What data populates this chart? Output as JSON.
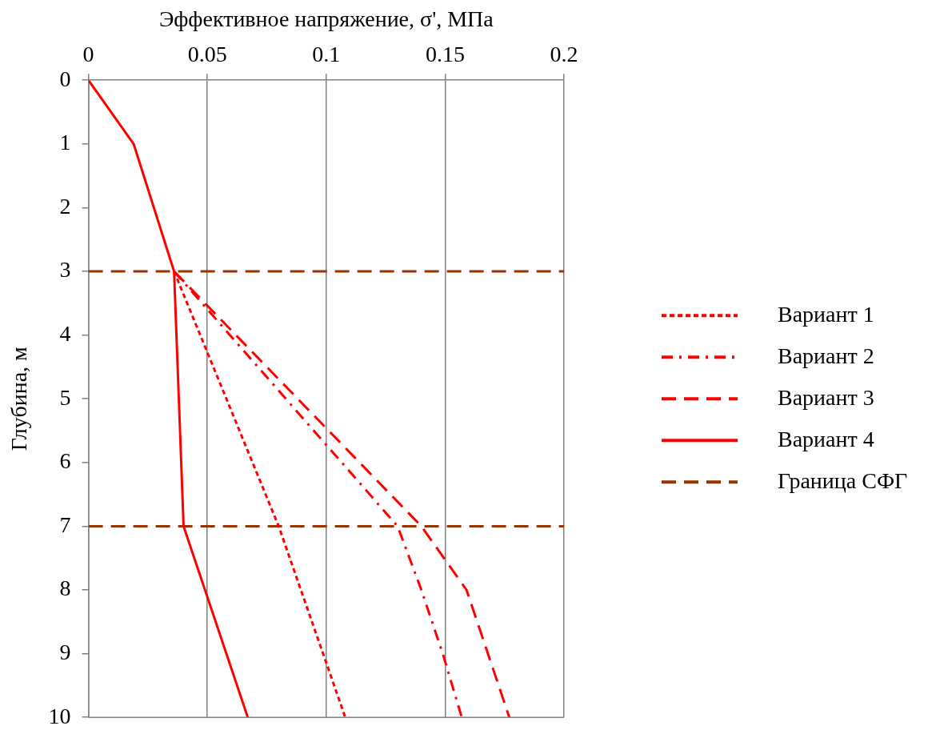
{
  "chart_data": {
    "type": "line",
    "xlabel": "Эффективное напряжение, σ', МПа",
    "ylabel": "Глубина, м",
    "xlim": [
      0,
      0.2
    ],
    "xticks": [
      0,
      0.05,
      0.1,
      0.15,
      0.2
    ],
    "ylim": [
      10,
      0
    ],
    "yticks": [
      0,
      1,
      2,
      3,
      4,
      5,
      6,
      7,
      8,
      9,
      10
    ],
    "grid": "x",
    "legend": "right",
    "marker": "none",
    "series": [
      {
        "name": "Вариант 1",
        "color": "#ff0000",
        "line_style": "dotted",
        "x": [
          0.036,
          0.08,
          0.108
        ],
        "values": [
          3,
          7,
          10
        ]
      },
      {
        "name": "Вариант 2",
        "color": "#ff0000",
        "line_style": "dashdot",
        "x": [
          0.036,
          0.13,
          0.14,
          0.149,
          0.157
        ],
        "values": [
          3,
          7,
          8,
          9,
          10
        ]
      },
      {
        "name": "Вариант 3",
        "color": "#ff0000",
        "line_style": "dashed",
        "x": [
          0.036,
          0.14,
          0.159,
          0.177
        ],
        "values": [
          3,
          7,
          8,
          10
        ]
      },
      {
        "name": "Вариант 4",
        "color": "#ff0000",
        "line_style": "solid",
        "x": [
          0,
          0.019,
          0.036,
          0.04,
          0.067
        ],
        "values": [
          0,
          1,
          3,
          7,
          10
        ]
      }
    ],
    "ref_lines": [
      {
        "axis": "y",
        "value": 3,
        "label": "Граница СФГ",
        "color": "#993300",
        "line_style": "dashed"
      },
      {
        "axis": "y",
        "value": 7,
        "color": "#993300",
        "line_style": "dashed"
      }
    ]
  }
}
